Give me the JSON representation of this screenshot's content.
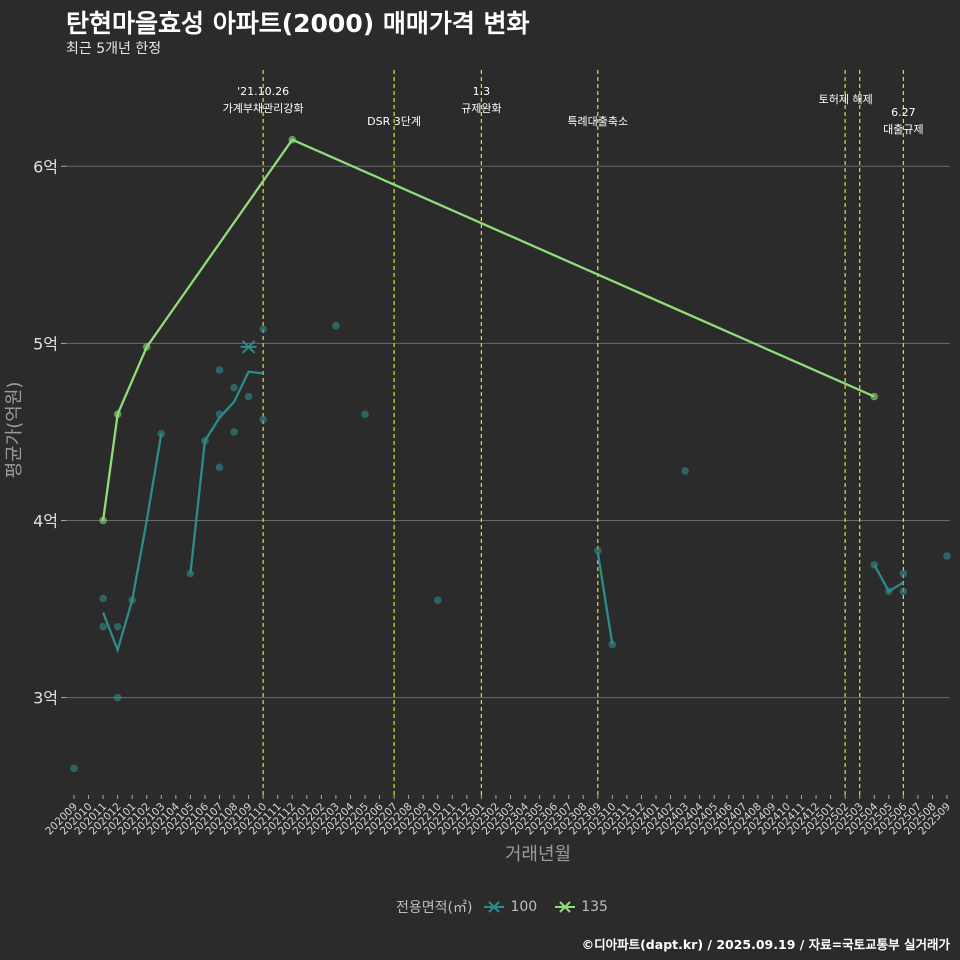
{
  "title": "탄현마을효성 아파트(2000) 매매가격 변화",
  "subtitle": "최근 5개년 한정",
  "caption": "©디아파트(dapt.kr) / 2025.09.19 / 자료=국토교통부 실거래가",
  "legend": {
    "title": "전용면적(㎡)",
    "items": [
      {
        "label": "100",
        "color": "#2e8b8b"
      },
      {
        "label": "135",
        "color": "#8fdc7a"
      }
    ]
  },
  "chart_data": {
    "type": "line",
    "xlabel": "거래년월",
    "ylabel": "평균가(억원)",
    "categories": [
      "202009",
      "202010",
      "202011",
      "202012",
      "202101",
      "202102",
      "202103",
      "202104",
      "202105",
      "202106",
      "202107",
      "202108",
      "202109",
      "202110",
      "202111",
      "202112",
      "202201",
      "202202",
      "202203",
      "202204",
      "202205",
      "202206",
      "202207",
      "202208",
      "202209",
      "202210",
      "202211",
      "202212",
      "202301",
      "202302",
      "202303",
      "202304",
      "202305",
      "202306",
      "202307",
      "202308",
      "202309",
      "202310",
      "202311",
      "202312",
      "202401",
      "202402",
      "202403",
      "202404",
      "202405",
      "202406",
      "202407",
      "202408",
      "202409",
      "202410",
      "202411",
      "202412",
      "202501",
      "202502",
      "202503",
      "202504",
      "202505",
      "202506",
      "202507",
      "202508",
      "202509"
    ],
    "ylim": [
      2.45,
      6.6
    ],
    "yticks": [
      {
        "value": 3,
        "label": "3억"
      },
      {
        "value": 4,
        "label": "4억"
      },
      {
        "value": 5,
        "label": "5억"
      },
      {
        "value": 6,
        "label": "6억"
      }
    ],
    "grid": true,
    "series": [
      {
        "name": "100",
        "color": "#2e8b8b",
        "line_segments": [
          [
            [
              "202011",
              3.48
            ],
            [
              "202012",
              3.27
            ],
            [
              "202101",
              3.55
            ],
            [
              "202102",
              4.0
            ],
            [
              "202103",
              4.49
            ]
          ],
          [
            [
              "202105",
              3.7
            ],
            [
              "202106",
              4.45
            ],
            [
              "202107",
              4.58
            ],
            [
              "202108",
              4.67
            ],
            [
              "202109",
              4.84
            ],
            [
              "202110",
              4.83
            ]
          ],
          [
            [
              "202309",
              3.82
            ],
            [
              "202310",
              3.3
            ]
          ],
          [
            [
              "202504",
              3.75
            ],
            [
              "202505",
              3.6
            ],
            [
              "202506",
              3.65
            ]
          ]
        ],
        "points": [
          [
            "202009",
            2.6
          ],
          [
            "202011",
            3.56
          ],
          [
            "202011",
            3.4
          ],
          [
            "202012",
            3.4
          ],
          [
            "202012",
            3.0
          ],
          [
            "202101",
            3.55
          ],
          [
            "202103",
            4.49
          ],
          [
            "202105",
            3.7
          ],
          [
            "202106",
            4.45
          ],
          [
            "202107",
            4.85
          ],
          [
            "202107",
            4.6
          ],
          [
            "202107",
            4.3
          ],
          [
            "202108",
            4.75
          ],
          [
            "202108",
            4.5
          ],
          [
            "202109",
            4.7
          ],
          [
            "202110",
            5.08
          ],
          [
            "202110",
            4.57
          ],
          [
            "202203",
            5.1
          ],
          [
            "202205",
            4.6
          ],
          [
            "202210",
            3.55
          ],
          [
            "202309",
            3.83
          ],
          [
            "202310",
            3.3
          ],
          [
            "202403",
            4.28
          ],
          [
            "202504",
            3.75
          ],
          [
            "202505",
            3.6
          ],
          [
            "202506",
            3.7
          ],
          [
            "202506",
            3.6
          ],
          [
            "202509",
            3.8
          ]
        ],
        "cross_points": [
          [
            "202109",
            4.98
          ]
        ]
      },
      {
        "name": "135",
        "color": "#8fdc7a",
        "line_segments": [
          [
            [
              "202011",
              4.0
            ],
            [
              "202012",
              4.6
            ],
            [
              "202102",
              4.98
            ],
            [
              "202112",
              6.15
            ],
            [
              "202504",
              4.7
            ]
          ]
        ],
        "points": [
          [
            "202011",
            4.0
          ],
          [
            "202012",
            4.6
          ],
          [
            "202102",
            4.98
          ],
          [
            "202112",
            6.15
          ],
          [
            "202504",
            4.7
          ]
        ],
        "cross_points": []
      }
    ],
    "annotations": [
      {
        "x": "202110",
        "lines": [
          "'21.10.26",
          "가계부채관리강화"
        ],
        "row": 0
      },
      {
        "x": "202207",
        "lines": [
          "DSR 3단계"
        ],
        "row": 1
      },
      {
        "x": "202301",
        "lines": [
          "1.3",
          "규제완화"
        ],
        "row": 0
      },
      {
        "x": "202309",
        "lines": [
          "특례대출축소"
        ],
        "row": 1
      },
      {
        "x": "202502",
        "lines": [],
        "row": 0
      },
      {
        "x": "202503",
        "lines": [
          "토허제 해제"
        ],
        "row": -1
      },
      {
        "x": "202506",
        "lines": [
          "6.27",
          "대출규제"
        ],
        "row": 0.7
      }
    ]
  }
}
